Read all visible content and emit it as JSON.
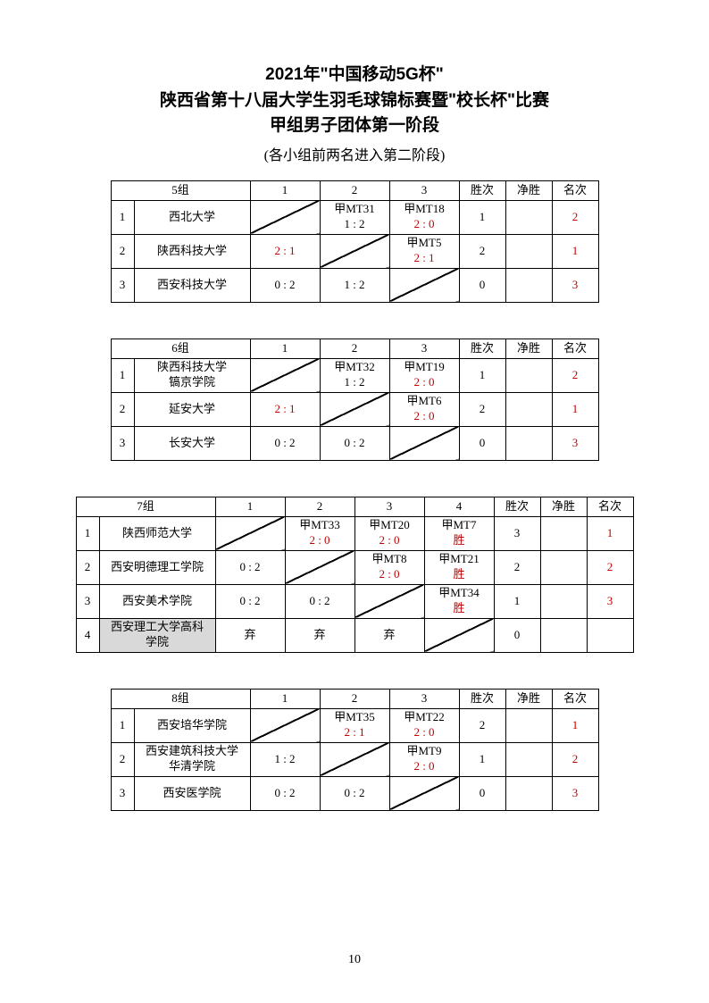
{
  "title": {
    "line1": "2021年\"中国移动5G杯\"",
    "line2": "陕西省第十八届大学生羽毛球锦标赛暨\"校长杯\"比赛",
    "line3": "甲组男子团体第一阶段",
    "subtitle": "(各小组前两名进入第二阶段)"
  },
  "headers": {
    "wins": "胜次",
    "net": "净胜",
    "rank": "名次"
  },
  "groups": [
    {
      "label": "5组",
      "size": 3,
      "teams": [
        {
          "idx": "1",
          "name": "西北大学",
          "wins": "1",
          "net": "",
          "rank": "2",
          "shaded": false,
          "cells": [
            null,
            {
              "top": "甲MT31",
              "bot": "1 : 2",
              "red": false
            },
            {
              "top": "甲MT18",
              "bot": "2 : 0",
              "red": true
            }
          ]
        },
        {
          "idx": "2",
          "name": "陕西科技大学",
          "wins": "2",
          "net": "",
          "rank": "1",
          "shaded": false,
          "cells": [
            {
              "single": "2 : 1",
              "red": true
            },
            null,
            {
              "top": "甲MT5",
              "bot": "2 : 1",
              "red": true
            }
          ]
        },
        {
          "idx": "3",
          "name": "西安科技大学",
          "wins": "0",
          "net": "",
          "rank": "3",
          "shaded": false,
          "cells": [
            {
              "single": "0 : 2",
              "red": false
            },
            {
              "single": "1 : 2",
              "red": false
            },
            null
          ]
        }
      ]
    },
    {
      "label": "6组",
      "size": 3,
      "teams": [
        {
          "idx": "1",
          "name": "陕西科技大学\n镐京学院",
          "wins": "1",
          "net": "",
          "rank": "2",
          "shaded": false,
          "cells": [
            null,
            {
              "top": "甲MT32",
              "bot": "1 : 2",
              "red": false
            },
            {
              "top": "甲MT19",
              "bot": "2 : 0",
              "red": true
            }
          ]
        },
        {
          "idx": "2",
          "name": "延安大学",
          "wins": "2",
          "net": "",
          "rank": "1",
          "shaded": false,
          "cells": [
            {
              "single": "2 : 1",
              "red": true
            },
            null,
            {
              "top": "甲MT6",
              "bot": "2 : 0",
              "red": true
            }
          ]
        },
        {
          "idx": "3",
          "name": "长安大学",
          "wins": "0",
          "net": "",
          "rank": "3",
          "shaded": false,
          "cells": [
            {
              "single": "0 : 2",
              "red": false
            },
            {
              "single": "0 : 2",
              "red": false
            },
            null
          ]
        }
      ]
    },
    {
      "label": "7组",
      "size": 4,
      "teams": [
        {
          "idx": "1",
          "name": "陕西师范大学",
          "wins": "3",
          "net": "",
          "rank": "1",
          "shaded": false,
          "cells": [
            null,
            {
              "top": "甲MT33",
              "bot": "2 : 0",
              "red": true
            },
            {
              "top": "甲MT20",
              "bot": "2 : 0",
              "red": true
            },
            {
              "top": "甲MT7",
              "bot": "胜",
              "red": true
            }
          ]
        },
        {
          "idx": "2",
          "name": "西安明德理工学院",
          "wins": "2",
          "net": "",
          "rank": "2",
          "shaded": false,
          "cells": [
            {
              "single": "0 : 2",
              "red": false
            },
            null,
            {
              "top": "甲MT8",
              "bot": "2 : 0",
              "red": true
            },
            {
              "top": "甲MT21",
              "bot": "胜",
              "red": true
            }
          ]
        },
        {
          "idx": "3",
          "name": "西安美术学院",
          "wins": "1",
          "net": "",
          "rank": "3",
          "shaded": false,
          "cells": [
            {
              "single": "0 : 2",
              "red": false
            },
            {
              "single": "0 : 2",
              "red": false
            },
            null,
            {
              "top": "甲MT34",
              "bot": "胜",
              "red": true
            }
          ]
        },
        {
          "idx": "4",
          "name": "西安理工大学高科\n学院",
          "wins": "0",
          "net": "",
          "rank": "",
          "shaded": true,
          "cells": [
            {
              "single": "弃",
              "red": false
            },
            {
              "single": "弃",
              "red": false
            },
            {
              "single": "弃",
              "red": false
            },
            null
          ]
        }
      ]
    },
    {
      "label": "8组",
      "size": 3,
      "teams": [
        {
          "idx": "1",
          "name": "西安培华学院",
          "wins": "2",
          "net": "",
          "rank": "1",
          "shaded": false,
          "cells": [
            null,
            {
              "top": "甲MT35",
              "bot": "2 : 1",
              "red": true
            },
            {
              "top": "甲MT22",
              "bot": "2 : 0",
              "red": true
            }
          ]
        },
        {
          "idx": "2",
          "name": "西安建筑科技大学\n华清学院",
          "wins": "1",
          "net": "",
          "rank": "2",
          "shaded": false,
          "cells": [
            {
              "single": "1 : 2",
              "red": false
            },
            null,
            {
              "top": "甲MT9",
              "bot": "2 : 0",
              "red": true
            }
          ]
        },
        {
          "idx": "3",
          "name": "西安医学院",
          "wins": "0",
          "net": "",
          "rank": "3",
          "shaded": false,
          "cells": [
            {
              "single": "0 : 2",
              "red": false
            },
            {
              "single": "0 : 2",
              "red": false
            },
            null
          ]
        }
      ]
    }
  ],
  "pageNumber": "10"
}
